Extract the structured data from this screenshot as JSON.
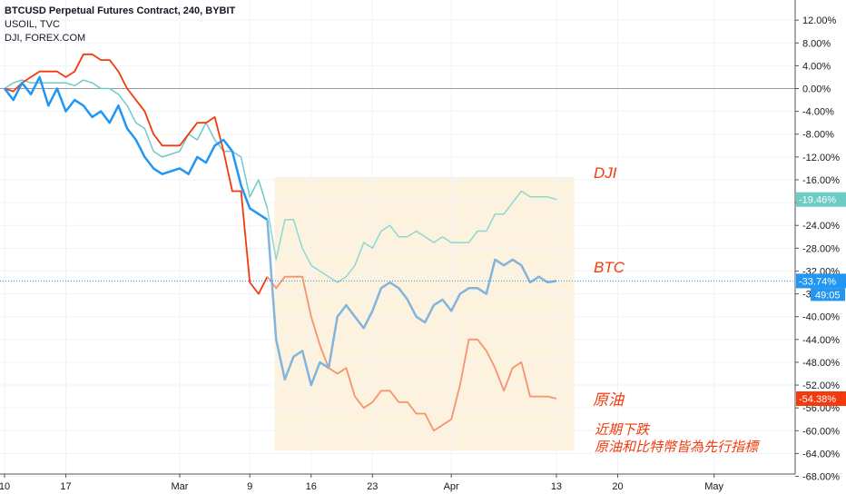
{
  "legend": {
    "main": "BTCUSD Perpetual Futures Contract, 240, BYBIT",
    "compare1": "USOIL, TVC",
    "compare2": "DJI, FOREX.COM"
  },
  "colors": {
    "btc": "#2196f3",
    "btc_faded": "#82b4dc",
    "oil": "#f23a0c",
    "oil_faded": "#f5946f",
    "dji": "#6ecbc6",
    "dji_faded": "#8ed8d2",
    "highlight_box": "#fcf2dd",
    "annotation": "#f23a0c",
    "price_line": "#2196f3"
  },
  "annotations": {
    "dji": "DJI",
    "btc": "BTC",
    "oil": "原油",
    "note_line1": "近期下跌",
    "note_line2": "原油和比特幣皆為先行指標"
  },
  "badges": {
    "dji": "-19.46%",
    "btc": "-33.74%",
    "btc_countdown": "49:05",
    "oil": "-54.38%"
  },
  "chart_data": {
    "type": "line",
    "y_unit": "% change",
    "ylim": [
      -68,
      14
    ],
    "y_ticks": [
      "12.00%",
      "8.00%",
      "4.00%",
      "0.00%",
      "-4.00%",
      "-8.00%",
      "-12.00%",
      "-16.00%",
      "-20.00%",
      "-24.00%",
      "-28.00%",
      "-32.00%",
      "-36.00%",
      "-40.00%",
      "-44.00%",
      "-48.00%",
      "-52.00%",
      "-56.00%",
      "-60.00%",
      "-64.00%",
      "-68.00%"
    ],
    "x_ticks": [
      "10",
      "17",
      "Mar",
      "9",
      "16",
      "23",
      "Apr",
      "13",
      "20",
      "May"
    ],
    "x_axis_dates": [
      "Feb 10",
      "Feb 17",
      "Mar 1",
      "Mar 9",
      "Mar 16",
      "Mar 23",
      "Apr 1",
      "Apr 13",
      "Apr 20",
      "May 1"
    ],
    "highlight_range": {
      "x": [
        "Mar 11",
        "Apr 14"
      ],
      "y": [
        -63.5,
        -15.5
      ]
    },
    "grid": true,
    "series": [
      {
        "name": "BTCUSD Perpetual Futures Contract, 240, BYBIT",
        "key": "btc",
        "points": [
          [
            "Feb 10",
            0
          ],
          [
            "Feb 11",
            -2
          ],
          [
            "Feb 12",
            1
          ],
          [
            "Feb 13",
            -1
          ],
          [
            "Feb 14",
            2
          ],
          [
            "Feb 15",
            -3
          ],
          [
            "Feb 16",
            0
          ],
          [
            "Feb 17",
            -4
          ],
          [
            "Feb 18",
            -2
          ],
          [
            "Feb 19",
            -3
          ],
          [
            "Feb 20",
            -5
          ],
          [
            "Feb 21",
            -4
          ],
          [
            "Feb 22",
            -6
          ],
          [
            "Feb 23",
            -3
          ],
          [
            "Feb 24",
            -7
          ],
          [
            "Feb 25",
            -9
          ],
          [
            "Feb 26",
            -12
          ],
          [
            "Feb 27",
            -14
          ],
          [
            "Feb 28",
            -15
          ],
          [
            "Mar 1",
            -14
          ],
          [
            "Mar 2",
            -15
          ],
          [
            "Mar 3",
            -12
          ],
          [
            "Mar 4",
            -13
          ],
          [
            "Mar 5",
            -10
          ],
          [
            "Mar 6",
            -9
          ],
          [
            "Mar 7",
            -11
          ],
          [
            "Mar 8",
            -17
          ],
          [
            "Mar 9",
            -21
          ],
          [
            "Mar 10",
            -22
          ],
          [
            "Mar 11",
            -23
          ],
          [
            "Mar 12",
            -44
          ],
          [
            "Mar 13",
            -51
          ],
          [
            "Mar 14",
            -47
          ],
          [
            "Mar 15",
            -46
          ],
          [
            "Mar 16",
            -52
          ],
          [
            "Mar 17",
            -48
          ],
          [
            "Mar 18",
            -49
          ],
          [
            "Mar 19",
            -40
          ],
          [
            "Mar 20",
            -38
          ],
          [
            "Mar 21",
            -40
          ],
          [
            "Mar 22",
            -42
          ],
          [
            "Mar 23",
            -39
          ],
          [
            "Mar 24",
            -35
          ],
          [
            "Mar 25",
            -34
          ],
          [
            "Mar 26",
            -35
          ],
          [
            "Mar 27",
            -37
          ],
          [
            "Mar 28",
            -40
          ],
          [
            "Mar 29",
            -41
          ],
          [
            "Mar 30",
            -38
          ],
          [
            "Mar 31",
            -37
          ],
          [
            "Apr 1",
            -39
          ],
          [
            "Apr 2",
            -36
          ],
          [
            "Apr 3",
            -35
          ],
          [
            "Apr 4",
            -35
          ],
          [
            "Apr 5",
            -36
          ],
          [
            "Apr 6",
            -30
          ],
          [
            "Apr 7",
            -31
          ],
          [
            "Apr 8",
            -30
          ],
          [
            "Apr 9",
            -31
          ],
          [
            "Apr 10",
            -34
          ],
          [
            "Apr 11",
            -33
          ],
          [
            "Apr 12",
            -34
          ],
          [
            "Apr 13",
            -33.74
          ]
        ]
      },
      {
        "name": "USOIL, TVC",
        "key": "oil",
        "points": [
          [
            "Feb 10",
            0
          ],
          [
            "Feb 11",
            -0.5
          ],
          [
            "Feb 12",
            1
          ],
          [
            "Feb 13",
            2
          ],
          [
            "Feb 14",
            3
          ],
          [
            "Feb 15",
            3
          ],
          [
            "Feb 16",
            3
          ],
          [
            "Feb 17",
            2
          ],
          [
            "Feb 18",
            3
          ],
          [
            "Feb 19",
            6
          ],
          [
            "Feb 20",
            6
          ],
          [
            "Feb 21",
            5
          ],
          [
            "Feb 22",
            5
          ],
          [
            "Feb 23",
            3
          ],
          [
            "Feb 24",
            0
          ],
          [
            "Feb 25",
            -2
          ],
          [
            "Feb 26",
            -4
          ],
          [
            "Feb 27",
            -8
          ],
          [
            "Feb 28",
            -10
          ],
          [
            "Mar 1",
            -10
          ],
          [
            "Mar 2",
            -8
          ],
          [
            "Mar 3",
            -6
          ],
          [
            "Mar 4",
            -6
          ],
          [
            "Mar 5",
            -5
          ],
          [
            "Mar 6",
            -11
          ],
          [
            "Mar 7",
            -18
          ],
          [
            "Mar 8",
            -18
          ],
          [
            "Mar 9",
            -34
          ],
          [
            "Mar 10",
            -36
          ],
          [
            "Mar 11",
            -33
          ],
          [
            "Mar 12",
            -35
          ],
          [
            "Mar 13",
            -33
          ],
          [
            "Mar 14",
            -33
          ],
          [
            "Mar 15",
            -33
          ],
          [
            "Mar 16",
            -40
          ],
          [
            "Mar 17",
            -45
          ],
          [
            "Mar 18",
            -49
          ],
          [
            "Mar 19",
            -50
          ],
          [
            "Mar 20",
            -49
          ],
          [
            "Mar 21",
            -54
          ],
          [
            "Mar 22",
            -56
          ],
          [
            "Mar 23",
            -55
          ],
          [
            "Mar 24",
            -53
          ],
          [
            "Mar 25",
            -53
          ],
          [
            "Mar 26",
            -55
          ],
          [
            "Mar 27",
            -55
          ],
          [
            "Mar 28",
            -57
          ],
          [
            "Mar 29",
            -57
          ],
          [
            "Mar 30",
            -60
          ],
          [
            "Mar 31",
            -59
          ],
          [
            "Apr 1",
            -58
          ],
          [
            "Apr 2",
            -52
          ],
          [
            "Apr 3",
            -44
          ],
          [
            "Apr 4",
            -44
          ],
          [
            "Apr 5",
            -46
          ],
          [
            "Apr 6",
            -49
          ],
          [
            "Apr 7",
            -53
          ],
          [
            "Apr 8",
            -49
          ],
          [
            "Apr 9",
            -48
          ],
          [
            "Apr 10",
            -54
          ],
          [
            "Apr 11",
            -54
          ],
          [
            "Apr 12",
            -54
          ],
          [
            "Apr 13",
            -54.38
          ]
        ]
      },
      {
        "name": "DJI, FOREX.COM",
        "key": "dji",
        "points": [
          [
            "Feb 10",
            0
          ],
          [
            "Feb 11",
            1
          ],
          [
            "Feb 12",
            1.5
          ],
          [
            "Feb 13",
            1
          ],
          [
            "Feb 14",
            1
          ],
          [
            "Feb 15",
            1
          ],
          [
            "Feb 16",
            1
          ],
          [
            "Feb 17",
            1
          ],
          [
            "Feb 18",
            0.5
          ],
          [
            "Feb 19",
            1.5
          ],
          [
            "Feb 20",
            1
          ],
          [
            "Feb 21",
            0
          ],
          [
            "Feb 22",
            0
          ],
          [
            "Feb 23",
            -1
          ],
          [
            "Feb 24",
            -3
          ],
          [
            "Feb 25",
            -6
          ],
          [
            "Feb 26",
            -7
          ],
          [
            "Feb 27",
            -11
          ],
          [
            "Feb 28",
            -12
          ],
          [
            "Mar 1",
            -11
          ],
          [
            "Mar 2",
            -8
          ],
          [
            "Mar 3",
            -9
          ],
          [
            "Mar 4",
            -6
          ],
          [
            "Mar 5",
            -9
          ],
          [
            "Mar 6",
            -11
          ],
          [
            "Mar 7",
            -11
          ],
          [
            "Mar 8",
            -12
          ],
          [
            "Mar 9",
            -19
          ],
          [
            "Mar 10",
            -16
          ],
          [
            "Mar 11",
            -21
          ],
          [
            "Mar 12",
            -30
          ],
          [
            "Mar 13",
            -23
          ],
          [
            "Mar 14",
            -23
          ],
          [
            "Mar 15",
            -28
          ],
          [
            "Mar 16",
            -31
          ],
          [
            "Mar 17",
            -32
          ],
          [
            "Mar 18",
            -33
          ],
          [
            "Mar 19",
            -34
          ],
          [
            "Mar 20",
            -33
          ],
          [
            "Mar 21",
            -31
          ],
          [
            "Mar 22",
            -27
          ],
          [
            "Mar 23",
            -28
          ],
          [
            "Mar 24",
            -25
          ],
          [
            "Mar 25",
            -24
          ],
          [
            "Mar 26",
            -26
          ],
          [
            "Mar 27",
            -26
          ],
          [
            "Mar 28",
            -25
          ],
          [
            "Mar 29",
            -26
          ],
          [
            "Mar 30",
            -27
          ],
          [
            "Mar 31",
            -26
          ],
          [
            "Apr 1",
            -27
          ],
          [
            "Apr 2",
            -27
          ],
          [
            "Apr 3",
            -27
          ],
          [
            "Apr 4",
            -25
          ],
          [
            "Apr 5",
            -25
          ],
          [
            "Apr 6",
            -22
          ],
          [
            "Apr 7",
            -22
          ],
          [
            "Apr 8",
            -20
          ],
          [
            "Apr 9",
            -18
          ],
          [
            "Apr 10",
            -19
          ],
          [
            "Apr 11",
            -19
          ],
          [
            "Apr 12",
            -19
          ],
          [
            "Apr 13",
            -19.46
          ]
        ]
      }
    ]
  }
}
